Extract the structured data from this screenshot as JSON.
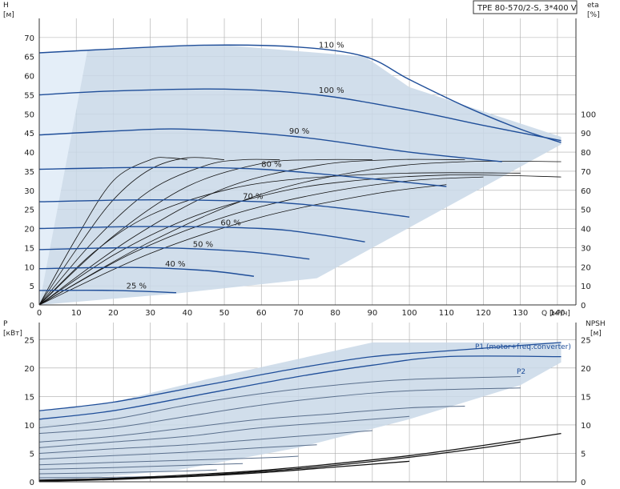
{
  "title": "TPE 80-570/2-S, 3*400 V",
  "colors": {
    "envelope": "#c9d8e8",
    "envelope_light": "#e4eef8",
    "curve_blue": "#1f4e99",
    "curve_black": "#111111",
    "grid": "#aaaaaa",
    "axis": "#333333"
  },
  "chart_data": [
    {
      "type": "line",
      "name": "head",
      "xlabel": "Q",
      "xunit": "[м³/ч]",
      "ylabel": "H",
      "yunit": "[м]",
      "y2label": "eta",
      "y2unit": "[%]",
      "xlim": [
        0,
        145
      ],
      "ylim": [
        0,
        75
      ],
      "y2lim": [
        0,
        150
      ],
      "x_ticks": [
        "0",
        "10",
        "20",
        "30",
        "40",
        "50",
        "60",
        "70",
        "80",
        "90",
        "100",
        "110",
        "120",
        "130",
        "140"
      ],
      "y_ticks": [
        "0",
        "5",
        "10",
        "15",
        "20",
        "25",
        "30",
        "35",
        "40",
        "45",
        "50",
        "55",
        "60",
        "65",
        "70"
      ],
      "y2_ticks": [
        "0",
        "10",
        "20",
        "30",
        "40",
        "50",
        "60",
        "70",
        "80",
        "90",
        "100"
      ],
      "grid": true,
      "envelope": {
        "x": [
          0,
          0,
          30,
          50,
          88,
          100,
          141,
          141,
          75,
          37,
          0
        ],
        "y": [
          0,
          66,
          67.5,
          68,
          65,
          57,
          44,
          42,
          7,
          3,
          0
        ]
      },
      "series": [
        {
          "name": "110 %",
          "x": [
            0,
            20,
            45,
            70,
            88,
            100,
            115,
            130,
            141
          ],
          "y": [
            66,
            67,
            68,
            67.5,
            65,
            59,
            52,
            46,
            42.5
          ]
        },
        {
          "name": "100 %",
          "x": [
            0,
            20,
            50,
            75,
            100,
            120,
            141
          ],
          "y": [
            55,
            56,
            56.5,
            55,
            51,
            47,
            43
          ]
        },
        {
          "name": "90 %",
          "x": [
            0,
            20,
            40,
            70,
            100,
            125
          ],
          "y": [
            44.5,
            45.5,
            46,
            44,
            40,
            37.5
          ]
        },
        {
          "name": "80 %",
          "x": [
            0,
            30,
            60,
            90,
            110
          ],
          "y": [
            35.5,
            36,
            35.5,
            33,
            31
          ]
        },
        {
          "name": "70 %",
          "x": [
            0,
            30,
            60,
            80,
            100
          ],
          "y": [
            27,
            27.5,
            27,
            25.5,
            23
          ]
        },
        {
          "name": "60 %",
          "x": [
            0,
            30,
            60,
            75,
            88
          ],
          "y": [
            20,
            20.5,
            20,
            18.5,
            16.5
          ]
        },
        {
          "name": "50 %",
          "x": [
            0,
            30,
            55,
            73
          ],
          "y": [
            14.5,
            15,
            14,
            12
          ]
        },
        {
          "name": "40 %",
          "x": [
            0,
            25,
            45,
            58
          ],
          "y": [
            9.5,
            9.8,
            9,
            7.5
          ]
        },
        {
          "name": "25 %",
          "x": [
            0,
            20,
            37
          ],
          "y": [
            3.8,
            3.8,
            3.2
          ]
        }
      ],
      "eta_curves": [
        {
          "x": [
            0,
            10,
            20,
            30,
            35,
            40
          ],
          "y": [
            0,
            35,
            65,
            76,
            77,
            76
          ]
        },
        {
          "x": [
            0,
            10,
            20,
            30,
            40,
            50
          ],
          "y": [
            0,
            29,
            55,
            71,
            77,
            76
          ]
        },
        {
          "x": [
            0,
            15,
            30,
            45,
            55,
            65
          ],
          "y": [
            0,
            34,
            60,
            73,
            76,
            76
          ]
        },
        {
          "x": [
            0,
            20,
            40,
            60,
            75,
            90
          ],
          "y": [
            0,
            36,
            62,
            74,
            76,
            76
          ]
        },
        {
          "x": [
            0,
            25,
            50,
            75,
            95,
            115
          ],
          "y": [
            0,
            35,
            61,
            73,
            76,
            76
          ]
        },
        {
          "x": [
            0,
            30,
            60,
            90,
            115,
            141
          ],
          "y": [
            0,
            33,
            58,
            71,
            75,
            75
          ]
        },
        {
          "x": [
            0,
            15,
            30,
            50,
            70,
            100,
            130
          ],
          "y": [
            0,
            28,
            47,
            60,
            66,
            69,
            69
          ]
        },
        {
          "x": [
            0,
            20,
            40,
            60,
            80,
            110,
            141
          ],
          "y": [
            0,
            26,
            45,
            57,
            64,
            68,
            67
          ]
        },
        {
          "x": [
            0,
            25,
            50,
            75,
            100,
            120
          ],
          "y": [
            0,
            27,
            46,
            58,
            65,
            67
          ]
        },
        {
          "x": [
            0,
            30,
            60,
            90,
            110
          ],
          "y": [
            0,
            27,
            46,
            58,
            63
          ]
        }
      ]
    },
    {
      "type": "line",
      "name": "power",
      "xlim": [
        0,
        145
      ],
      "ylabel": "P",
      "yunit": "[кВт]",
      "y2label": "NPSH",
      "y2unit": "[м]",
      "ylim": [
        0,
        28
      ],
      "y_ticks": [
        "0",
        "5",
        "10",
        "15",
        "20",
        "25"
      ],
      "y2_ticks": [
        "0",
        "5",
        "10",
        "15",
        "20",
        "25"
      ],
      "grid": true,
      "envelope": {
        "x": [
          0,
          0,
          20,
          45,
          90,
          141,
          141,
          130,
          100,
          70,
          37,
          0
        ],
        "y": [
          0,
          12.5,
          14,
          18,
          24.5,
          24.5,
          21,
          17,
          11,
          6,
          2,
          0
        ]
      },
      "series_labels": [
        "P1 (motor+freq.converter)",
        "P2"
      ],
      "power_curves": [
        {
          "x": [
            0,
            20,
            45,
            70,
            90,
            110,
            141
          ],
          "y": [
            12.5,
            14,
            17,
            20,
            22,
            23,
            24.5
          ]
        },
        {
          "x": [
            0,
            20,
            45,
            70,
            90,
            110,
            141
          ],
          "y": [
            11,
            12.5,
            15.5,
            18.5,
            20.5,
            22,
            22
          ]
        },
        {
          "x": [
            0,
            20,
            40,
            60,
            80,
            100,
            130
          ],
          "y": [
            9.5,
            11,
            13.5,
            15.5,
            17,
            18,
            18.5
          ]
        },
        {
          "x": [
            0,
            20,
            40,
            60,
            80,
            100,
            130
          ],
          "y": [
            8.5,
            9.5,
            11.5,
            13.5,
            15,
            16,
            16.5
          ]
        },
        {
          "x": [
            0,
            20,
            40,
            60,
            80,
            100,
            115
          ],
          "y": [
            7,
            8,
            9.5,
            11,
            12,
            13,
            13.3
          ]
        },
        {
          "x": [
            0,
            20,
            40,
            60,
            80,
            100
          ],
          "y": [
            6,
            7,
            8,
            9.5,
            10.5,
            11.5
          ]
        },
        {
          "x": [
            0,
            20,
            40,
            60,
            80,
            90
          ],
          "y": [
            5,
            5.8,
            6.5,
            7.5,
            8.5,
            9
          ]
        },
        {
          "x": [
            0,
            20,
            40,
            60,
            75
          ],
          "y": [
            4,
            4.6,
            5.2,
            6,
            6.5
          ]
        },
        {
          "x": [
            0,
            20,
            40,
            60,
            70
          ],
          "y": [
            3,
            3.4,
            3.8,
            4.2,
            4.5
          ]
        },
        {
          "x": [
            0,
            20,
            40,
            55
          ],
          "y": [
            2.2,
            2.5,
            2.9,
            3.2
          ]
        },
        {
          "x": [
            0,
            20,
            40,
            48
          ],
          "y": [
            1.4,
            1.6,
            1.9,
            2.1
          ]
        },
        {
          "x": [
            0,
            20,
            37
          ],
          "y": [
            0.7,
            0.8,
            1
          ]
        }
      ],
      "npsh_curves": [
        {
          "x": [
            0,
            20,
            40,
            60,
            80,
            100,
            120,
            141
          ],
          "y": [
            0.3,
            0.6,
            1.2,
            2,
            3.2,
            4.6,
            6.4,
            8.5
          ]
        },
        {
          "x": [
            0,
            20,
            40,
            60,
            80,
            100,
            120,
            130
          ],
          "y": [
            0.2,
            0.5,
            1,
            1.8,
            2.9,
            4.3,
            6,
            7
          ]
        },
        {
          "x": [
            0,
            20,
            40,
            60,
            80,
            100
          ],
          "y": [
            0.1,
            0.4,
            0.9,
            1.6,
            2.6,
            3.6
          ]
        }
      ]
    }
  ]
}
